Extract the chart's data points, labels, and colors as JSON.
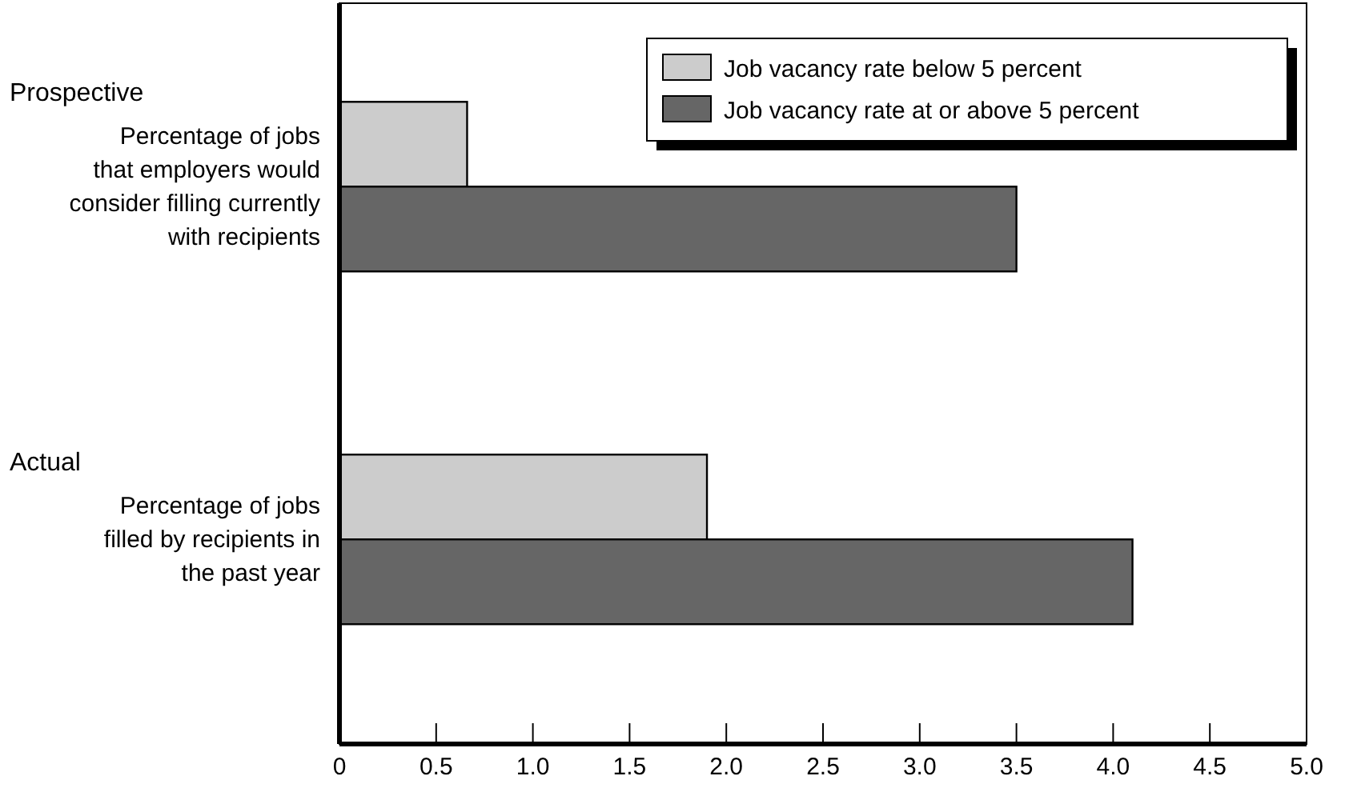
{
  "chart_data": {
    "type": "bar",
    "orientation": "horizontal",
    "categories": [
      "Percentage of jobs\nthat employers would\nconsider filling currently\nwith recipients",
      "Percentage of jobs\nfilled by recipients in\nthe past year"
    ],
    "series": [
      {
        "name": "Job vacancy rate below 5 percent",
        "color": "#cccccc",
        "values": [
          0.66,
          1.9
        ]
      },
      {
        "name": "Job vacancy rate at or above 5 percent",
        "color": "#666666",
        "values": [
          3.5,
          4.1
        ]
      }
    ],
    "xlim": [
      0,
      5
    ],
    "xticks": [
      0,
      {
        "value": 0.5,
        "label": "0.5"
      },
      {
        "value": 1,
        "label": "1.0"
      },
      {
        "value": 1.5,
        "label": "1.5"
      },
      {
        "value": 2,
        "label": "2.0"
      },
      {
        "value": 2.5,
        "label": "2.5"
      },
      {
        "value": 3,
        "label": "3.0"
      },
      {
        "value": 3.5,
        "label": "3.5"
      },
      {
        "value": 4,
        "label": "4.0"
      },
      {
        "value": 4.5,
        "label": "4.5"
      },
      {
        "value": 5,
        "label": "5.0"
      }
    ],
    "annotations": [
      "Prospective",
      "Actual"
    ],
    "legend": "top right",
    "grid": false
  }
}
